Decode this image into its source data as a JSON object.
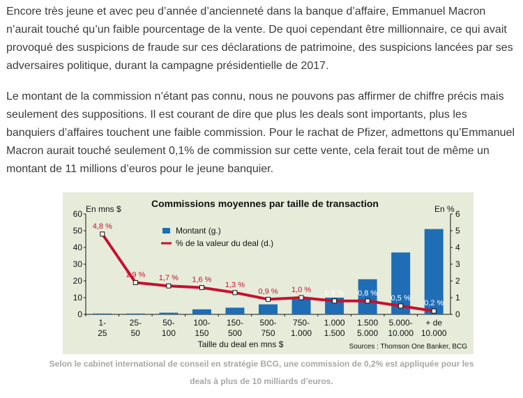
{
  "article": {
    "paragraph_1": "Encore très jeune et avec peu d’année d’ancienneté dans la banque d’affaire, Emmanuel Macron n’aurait touché qu’un faible pourcentage de la vente. De quoi cependant être millionnaire, ce qui avait provoqué des suspicions de fraude sur ces déclarations de patrimoine, des suspicions lancées par ses adversaires politique, durant la campagne présidentielle de 2017.",
    "paragraph_2": "Le montant de la commission n’étant pas connu, nous ne pouvons pas affirmer de chiffre précis mais seulement des suppositions. Il est courant de dire que plus les deals sont importants, plus les banquiers d’affaires touchent une faible commission. Pour le rachat de Pfizer, admettons qu’Emmanuel Macron aurait touché seulement 0,1% de commission sur cette vente, cela ferait tout de même un montant de 11 millions d’euros pour le jeune banquier.",
    "caption_line_1": "Selon le cabinet international de conseil en stratégie BCG, une commission de 0,2% est appliquée pour les",
    "caption_line_2": "deals à plus de 10 milliards d’euros."
  },
  "colors": {
    "chart_background": "#e6ecd9",
    "bar": "#1f6db5",
    "line": "#c8102e",
    "text_main": "#3a3a3a",
    "caption": "#a7a7a7"
  },
  "chart_data": {
    "type": "bar",
    "title": "Commissions moyennes par taille de transaction",
    "left_axis_label": "En mns $",
    "right_axis_label": "En %",
    "xlabel": "Taille du deal en mns $",
    "source": "Sources : Thomson One Banker, BCG",
    "categories": [
      [
        "1-",
        "25"
      ],
      [
        "25-",
        "50"
      ],
      [
        "50-",
        "100"
      ],
      [
        "100-",
        "150"
      ],
      [
        "150-",
        "500"
      ],
      [
        "500-",
        "750"
      ],
      [
        "750-",
        "1.000"
      ],
      [
        "1.000",
        "1.500"
      ],
      [
        "1.500",
        "5.000"
      ],
      [
        "5.000-",
        "10.000"
      ],
      [
        "+ de",
        "10.000"
      ]
    ],
    "left_ylim": [
      0,
      60
    ],
    "left_ticks": [
      "0",
      "10",
      "20",
      "30",
      "40",
      "50",
      "60"
    ],
    "right_ylim": [
      0,
      6
    ],
    "right_ticks": [
      "0",
      "1",
      "2",
      "3",
      "4",
      "5",
      "6"
    ],
    "series": [
      {
        "name": "Montant (g.)",
        "axis": "left",
        "kind": "bar",
        "values": [
          0.5,
          0.5,
          1,
          3,
          4,
          6,
          9,
          10,
          21,
          37,
          51
        ]
      },
      {
        "name": "% de la valeur du deal (d.)",
        "axis": "right",
        "kind": "line",
        "values": [
          4.8,
          1.9,
          1.7,
          1.6,
          1.3,
          0.9,
          1.0,
          0.8,
          0.8,
          0.5,
          0.2
        ],
        "labels": [
          "4,8 %",
          "1,9 %",
          "1,7 %",
          "1,6 %",
          "1,3 %",
          "0,9 %",
          "1,0 %",
          "0,8 %",
          "0,8 %",
          "0,5 %",
          "0,2 %"
        ]
      }
    ],
    "legend_position": "top-left inside plot",
    "grid": false
  }
}
